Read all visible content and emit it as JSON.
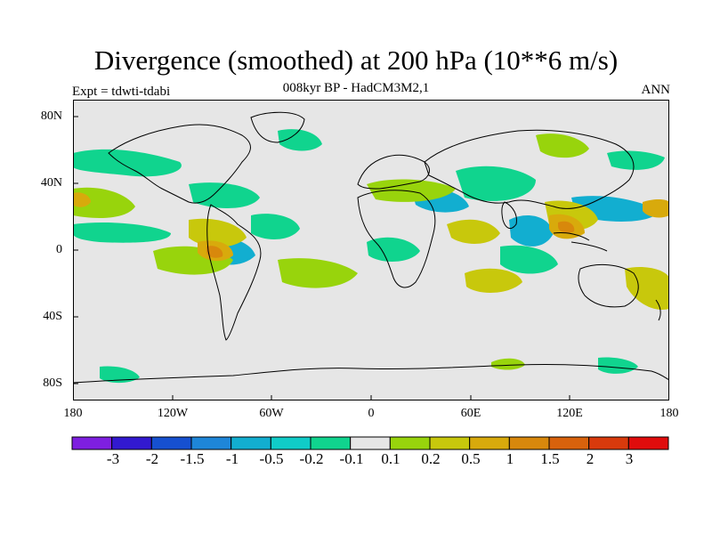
{
  "title": "Divergence (smoothed) at 200 hPa (10**6 m/s)",
  "subtitle": "008kyr BP - HadCM3M2,1",
  "experiment_label": "Expt = tdwti-tdabi",
  "period_label": "ANN",
  "latitude_ticks": [
    "80N",
    "40N",
    "0",
    "40S",
    "80S"
  ],
  "longitude_ticks": [
    "180",
    "120W",
    "60W",
    "0",
    "60E",
    "120E",
    "180"
  ],
  "colorbar": {
    "labels": [
      "-3",
      "-2",
      "-1.5",
      "-1",
      "-0.5",
      "-0.2",
      "-0.1",
      "0.1",
      "0.2",
      "0.5",
      "1",
      "1.5",
      "2",
      "3"
    ],
    "colors": [
      "#7e1fe0",
      "#3219d0",
      "#1650d0",
      "#1e86d8",
      "#12aed0",
      "#10ccc8",
      "#10d48e",
      "#e6e6e6",
      "#98d40c",
      "#c8c80c",
      "#d8aa0c",
      "#d8880c",
      "#d8620c",
      "#d83a0c",
      "#e00c0c"
    ]
  },
  "map": {
    "background_color": "#e6e6e6",
    "coastline_color": "#000000"
  }
}
